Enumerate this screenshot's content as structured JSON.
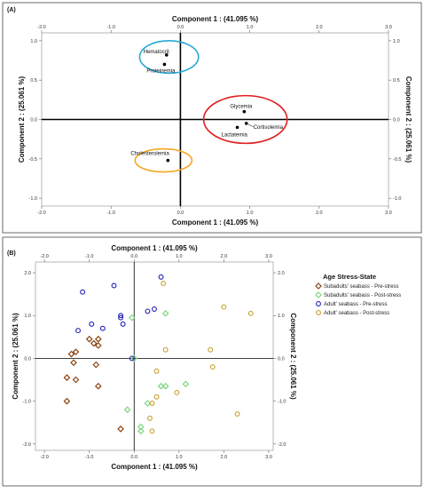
{
  "chart_data": [
    {
      "panel": "(A)",
      "type": "scatter",
      "xlabel": "Component 1 : (41.095 %)",
      "ylabel": "Component 2 : (25.061 %)",
      "xlim": [
        -2.0,
        3.0
      ],
      "ylim": [
        -1.1,
        1.1
      ],
      "xticks": [
        "-2.0",
        "-1.0",
        "0.0",
        "1.0",
        "2.0",
        "3.0"
      ],
      "yticks": [
        "1.0",
        "0.5",
        "0.0",
        "-0.5",
        "-1.0"
      ],
      "ytick_values": [
        1.0,
        0.5,
        0.0,
        -0.5,
        -1.0
      ],
      "xtick_values": [
        -2.0,
        -1.0,
        0.0,
        1.0,
        2.0,
        3.0
      ],
      "grid": false,
      "points": [
        {
          "label": "Hematocrit",
          "x": -0.2,
          "y": 0.82
        },
        {
          "label": "Proteinemia",
          "x": -0.23,
          "y": 0.7
        },
        {
          "label": "Glycemia",
          "x": 0.92,
          "y": 0.1
        },
        {
          "label": "Cortisolemia",
          "x": 0.95,
          "y": -0.05
        },
        {
          "label": "Lactatemia",
          "x": 0.82,
          "y": -0.1
        },
        {
          "label": "Cholesterolemia",
          "x": -0.18,
          "y": -0.52
        }
      ],
      "groups": [
        {
          "members": [
            "Hematocrit",
            "Proteinemia"
          ],
          "color": "#29a9d6"
        },
        {
          "members": [
            "Glycemia",
            "Cortisolemia",
            "Lactatemia"
          ],
          "color": "#e02020"
        },
        {
          "members": [
            "Cholesterolemia"
          ],
          "color": "#f5a623"
        }
      ]
    },
    {
      "panel": "(B)",
      "type": "scatter",
      "xlabel": "Component 1 : (41.095 %)",
      "ylabel": "Component 2 : (25.061 %)",
      "xlim": [
        -2.2,
        3.1
      ],
      "ylim": [
        -2.15,
        2.25
      ],
      "xticks": [
        "-2.0",
        "-1.0",
        "0.0",
        "1.0",
        "2.0",
        "3.0"
      ],
      "xtick_values": [
        -2.0,
        -1.0,
        0.0,
        1.0,
        2.0,
        3.0
      ],
      "yticks": [
        "2.0",
        "1.0",
        "0.0",
        "-1.0",
        "-2.0"
      ],
      "ytick_values": [
        2.0,
        1.0,
        0.0,
        -1.0,
        -2.0
      ],
      "grid": false,
      "legend": {
        "title": "Age Stress-State",
        "position": "right",
        "entries": [
          {
            "label": "Subadults' seabass - Pre-stress",
            "color": "#8b4513",
            "marker": "diamond"
          },
          {
            "label": "Subadults' seabass - Post-stress",
            "color": "#7fd67f",
            "marker": "diamond"
          },
          {
            "label": "Adult' seabass - Pre-stress",
            "color": "#1f1fb4",
            "marker": "circle"
          },
          {
            "label": "Adult' seabass - Post-stress",
            "color": "#c8a030",
            "marker": "circle"
          }
        ]
      },
      "series": [
        {
          "name": "Subadults' seabass - Pre-stress",
          "points": [
            [
              -1.4,
              0.1
            ],
            [
              -1.5,
              -0.45
            ],
            [
              -1.5,
              -1.0
            ],
            [
              -1.3,
              0.15
            ],
            [
              -1.3,
              -0.5
            ],
            [
              -1.35,
              -0.1
            ],
            [
              -1.0,
              0.45
            ],
            [
              -0.9,
              0.35
            ],
            [
              -0.8,
              0.45
            ],
            [
              -0.8,
              0.3
            ],
            [
              -0.85,
              -0.15
            ],
            [
              -0.8,
              -0.65
            ],
            [
              -0.3,
              -1.65
            ]
          ]
        },
        {
          "name": "Subadults' seabass - Post-stress",
          "points": [
            [
              -0.05,
              0.95
            ],
            [
              0.7,
              1.05
            ],
            [
              0.6,
              -0.65
            ],
            [
              0.7,
              -0.65
            ],
            [
              1.15,
              -0.6
            ],
            [
              0.3,
              -1.05
            ],
            [
              0.15,
              -1.6
            ],
            [
              0.15,
              -1.7
            ],
            [
              -0.15,
              -1.2
            ],
            [
              0.0,
              0.0
            ]
          ]
        },
        {
          "name": "Adult' seabass - Pre-stress",
          "points": [
            [
              -1.15,
              1.55
            ],
            [
              -1.25,
              0.65
            ],
            [
              -0.95,
              0.8
            ],
            [
              -0.45,
              1.7
            ],
            [
              -0.3,
              0.95
            ],
            [
              -0.25,
              0.8
            ],
            [
              -0.7,
              0.7
            ],
            [
              -0.3,
              1.0
            ],
            [
              0.3,
              1.1
            ],
            [
              0.45,
              1.15
            ],
            [
              0.6,
              1.9
            ],
            [
              -0.05,
              0.0
            ]
          ]
        },
        {
          "name": "Adult' seabass - Post-stress",
          "points": [
            [
              0.65,
              1.75
            ],
            [
              0.7,
              0.2
            ],
            [
              0.5,
              -0.3
            ],
            [
              0.95,
              -0.8
            ],
            [
              0.5,
              -0.9
            ],
            [
              0.4,
              -1.05
            ],
            [
              0.35,
              -1.4
            ],
            [
              0.4,
              -1.7
            ],
            [
              1.7,
              0.2
            ],
            [
              1.75,
              -0.2
            ],
            [
              2.0,
              1.2
            ],
            [
              2.6,
              1.05
            ],
            [
              2.3,
              -1.3
            ]
          ]
        }
      ]
    }
  ]
}
